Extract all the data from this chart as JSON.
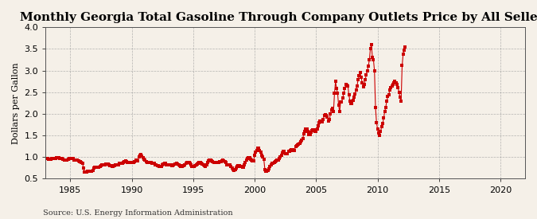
{
  "title": "Monthly Georgia Total Gasoline Through Company Outlets Price by All Sellers",
  "ylabel": "Dollars per Gallon",
  "source": "Source: U.S. Energy Information Administration",
  "bg_color": "#F5F0E8",
  "plot_bg_color": "#F5F0E8",
  "line_color": "#CC0000",
  "marker": "s",
  "markersize": 2.5,
  "linewidth": 0.8,
  "xlim": [
    1983,
    2022
  ],
  "ylim": [
    0.5,
    4.0
  ],
  "yticks": [
    0.5,
    1.0,
    1.5,
    2.0,
    2.5,
    3.0,
    3.5,
    4.0
  ],
  "xticks": [
    1985,
    1990,
    1995,
    2000,
    2005,
    2010,
    2015,
    2020
  ],
  "title_fontsize": 11,
  "label_fontsize": 8,
  "tick_fontsize": 8,
  "source_fontsize": 7,
  "prices": [
    0.97,
    0.97,
    0.96,
    0.95,
    0.95,
    0.95,
    0.97,
    0.97,
    0.96,
    0.96,
    0.97,
    0.98,
    0.98,
    0.98,
    0.97,
    0.96,
    0.96,
    0.95,
    0.94,
    0.94,
    0.94,
    0.94,
    0.95,
    0.96,
    0.97,
    0.97,
    0.97,
    0.96,
    0.94,
    0.93,
    0.93,
    0.93,
    0.92,
    0.9,
    0.89,
    0.87,
    0.86,
    0.75,
    0.65,
    0.65,
    0.65,
    0.67,
    0.68,
    0.68,
    0.67,
    0.67,
    0.7,
    0.74,
    0.76,
    0.77,
    0.77,
    0.76,
    0.76,
    0.78,
    0.8,
    0.82,
    0.82,
    0.82,
    0.83,
    0.84,
    0.84,
    0.84,
    0.83,
    0.81,
    0.8,
    0.79,
    0.79,
    0.8,
    0.82,
    0.82,
    0.82,
    0.83,
    0.85,
    0.86,
    0.86,
    0.86,
    0.87,
    0.89,
    0.91,
    0.9,
    0.88,
    0.88,
    0.87,
    0.87,
    0.87,
    0.88,
    0.88,
    0.9,
    0.93,
    0.92,
    0.92,
    1.0,
    1.05,
    1.07,
    1.03,
    0.99,
    0.95,
    0.93,
    0.9,
    0.88,
    0.87,
    0.87,
    0.87,
    0.87,
    0.86,
    0.86,
    0.85,
    0.83,
    0.82,
    0.81,
    0.8,
    0.79,
    0.78,
    0.79,
    0.82,
    0.84,
    0.85,
    0.85,
    0.83,
    0.82,
    0.82,
    0.82,
    0.82,
    0.81,
    0.81,
    0.82,
    0.84,
    0.84,
    0.85,
    0.84,
    0.83,
    0.8,
    0.78,
    0.79,
    0.8,
    0.81,
    0.83,
    0.85,
    0.87,
    0.87,
    0.87,
    0.85,
    0.82,
    0.79,
    0.78,
    0.79,
    0.8,
    0.82,
    0.84,
    0.86,
    0.87,
    0.87,
    0.86,
    0.84,
    0.82,
    0.8,
    0.79,
    0.82,
    0.87,
    0.92,
    0.94,
    0.94,
    0.91,
    0.89,
    0.87,
    0.87,
    0.87,
    0.87,
    0.88,
    0.88,
    0.89,
    0.9,
    0.92,
    0.93,
    0.92,
    0.9,
    0.87,
    0.83,
    0.83,
    0.83,
    0.83,
    0.79,
    0.75,
    0.71,
    0.7,
    0.71,
    0.75,
    0.78,
    0.8,
    0.8,
    0.79,
    0.78,
    0.77,
    0.77,
    0.83,
    0.88,
    0.93,
    0.97,
    0.98,
    0.98,
    0.95,
    0.93,
    0.91,
    0.92,
    1.05,
    1.12,
    1.15,
    1.2,
    1.21,
    1.16,
    1.11,
    1.05,
    1.01,
    0.95,
    0.72,
    0.68,
    0.68,
    0.7,
    0.73,
    0.78,
    0.83,
    0.85,
    0.86,
    0.87,
    0.9,
    0.92,
    0.93,
    0.93,
    0.97,
    1.0,
    1.04,
    1.1,
    1.14,
    1.13,
    1.08,
    1.08,
    1.08,
    1.13,
    1.14,
    1.16,
    1.17,
    1.17,
    1.16,
    1.16,
    1.24,
    1.27,
    1.29,
    1.3,
    1.31,
    1.36,
    1.4,
    1.43,
    1.54,
    1.6,
    1.65,
    1.65,
    1.6,
    1.53,
    1.52,
    1.57,
    1.61,
    1.63,
    1.63,
    1.6,
    1.6,
    1.65,
    1.72,
    1.8,
    1.84,
    1.84,
    1.82,
    1.87,
    1.96,
    1.99,
    1.97,
    1.92,
    1.83,
    1.87,
    2.0,
    2.1,
    2.12,
    2.05,
    2.48,
    2.75,
    2.58,
    2.48,
    2.2,
    2.05,
    2.28,
    2.28,
    2.37,
    2.48,
    2.58,
    2.68,
    2.67,
    2.65,
    2.45,
    2.3,
    2.24,
    2.24,
    2.32,
    2.38,
    2.46,
    2.56,
    2.64,
    2.8,
    2.88,
    2.95,
    2.85,
    2.72,
    2.62,
    2.68,
    2.8,
    2.9,
    3.0,
    3.1,
    3.25,
    3.5,
    3.6,
    3.3,
    3.25,
    3.0,
    2.15,
    1.8,
    1.65,
    1.55,
    1.5,
    1.6,
    1.7,
    1.78,
    1.9,
    2.05,
    2.15,
    2.3,
    2.4,
    2.45,
    2.55,
    2.6,
    2.65,
    2.68,
    2.72,
    2.75,
    2.72,
    2.68,
    2.6,
    2.5,
    2.38,
    2.3,
    3.12,
    3.38,
    3.48,
    3.55
  ],
  "start_year": 1983,
  "start_month": 1
}
